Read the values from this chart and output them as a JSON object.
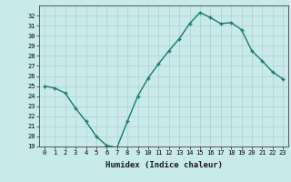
{
  "title": "",
  "xlabel": "Humidex (Indice chaleur)",
  "ylabel": "",
  "x": [
    0,
    1,
    2,
    3,
    4,
    5,
    6,
    7,
    8,
    9,
    10,
    11,
    12,
    13,
    14,
    15,
    16,
    17,
    18,
    19,
    20,
    21,
    22,
    23
  ],
  "y": [
    25.0,
    24.8,
    24.3,
    22.8,
    21.5,
    20.0,
    19.1,
    18.9,
    21.5,
    24.0,
    25.8,
    27.2,
    28.5,
    29.7,
    31.2,
    32.3,
    31.8,
    31.2,
    31.3,
    30.6,
    28.5,
    27.5,
    26.4,
    25.7
  ],
  "line_color": "#1a7a6e",
  "bg_color": "#c8eaea",
  "grid_color": "#b0d0d0",
  "ylim": [
    19,
    33
  ],
  "yticks": [
    19,
    20,
    21,
    22,
    23,
    24,
    25,
    26,
    27,
    28,
    29,
    30,
    31,
    32
  ],
  "xticks": [
    0,
    1,
    2,
    3,
    4,
    5,
    6,
    7,
    8,
    9,
    10,
    11,
    12,
    13,
    14,
    15,
    16,
    17,
    18,
    19,
    20,
    21,
    22,
    23
  ],
  "marker": "+",
  "marker_size": 3.5,
  "line_width": 1.0
}
